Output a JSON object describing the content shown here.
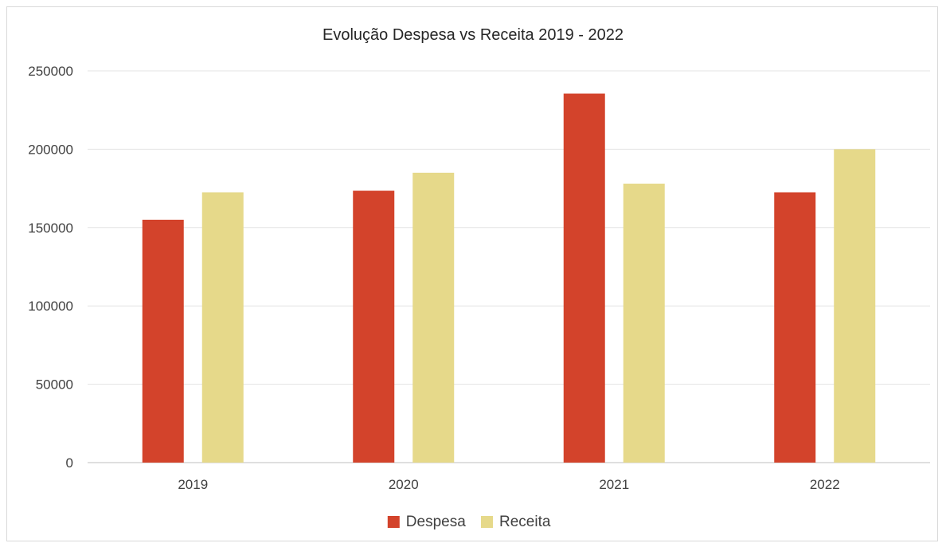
{
  "chart_data": {
    "type": "bar",
    "title": "Evolução Despesa vs Receita 2019 - 2022",
    "xlabel": "",
    "ylabel": "",
    "categories": [
      "2019",
      "2020",
      "2021",
      "2022"
    ],
    "series": [
      {
        "name": "Despesa",
        "color": "#d3432b",
        "values": [
          155000,
          173500,
          235500,
          172500
        ]
      },
      {
        "name": "Receita",
        "color": "#e6d98a",
        "values": [
          172500,
          185000,
          178000,
          200000
        ]
      }
    ],
    "ylim": [
      0,
      250000
    ],
    "yticks": [
      "0",
      "50000",
      "100000",
      "150000",
      "200000",
      "250000"
    ],
    "grid": true,
    "legend_position": "bottom"
  }
}
